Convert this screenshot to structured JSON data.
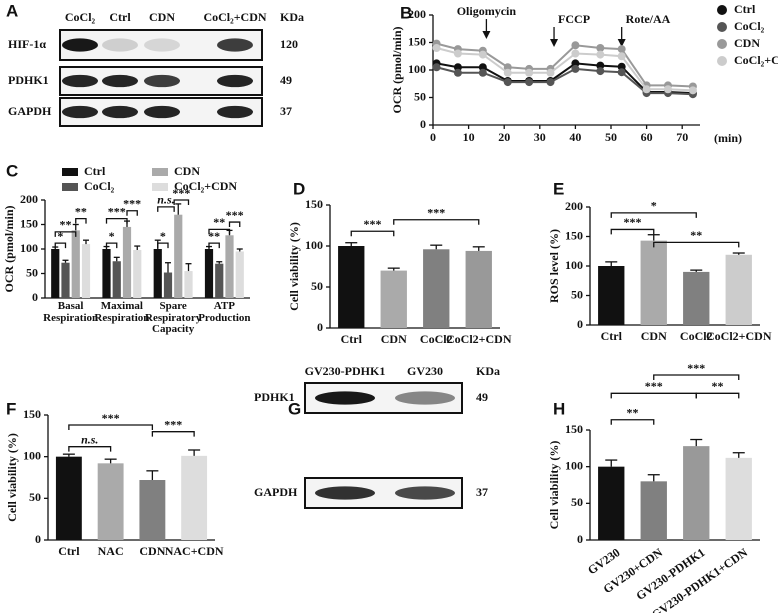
{
  "chart_data": [
    {
      "type": "blot",
      "panel": "A",
      "columns": [
        "CoCl₂",
        "Ctrl",
        "CDN",
        "CoCl₂+CDN"
      ],
      "unit": "KDa",
      "rows": [
        "HIF-1α",
        "PDHK1",
        "GAPDH"
      ],
      "sizes": [
        120,
        49,
        37
      ]
    },
    {
      "type": "line",
      "panel": "B",
      "ylabel": "OCR (pmol/min)",
      "xlabel": "(min)",
      "x": [
        1,
        7,
        14,
        21,
        27,
        33,
        40,
        47,
        53,
        60,
        66,
        73
      ],
      "series": [
        {
          "name": "Ctrl",
          "color": "#111111",
          "values": [
            112,
            105,
            105,
            80,
            80,
            80,
            112,
            108,
            106,
            60,
            60,
            58
          ]
        },
        {
          "name": "CoCl₂",
          "color": "#555555",
          "values": [
            105,
            95,
            95,
            78,
            78,
            78,
            102,
            98,
            96,
            58,
            58,
            56
          ]
        },
        {
          "name": "CDN",
          "color": "#999999",
          "values": [
            148,
            138,
            135,
            105,
            102,
            102,
            145,
            140,
            138,
            72,
            72,
            70
          ]
        },
        {
          "name": "CoCl₂+CDN",
          "color": "#cccccc",
          "values": [
            140,
            130,
            128,
            95,
            95,
            95,
            130,
            128,
            125,
            65,
            65,
            63
          ]
        }
      ],
      "xlim": [
        0,
        75
      ],
      "xticks": [
        0,
        10,
        20,
        30,
        40,
        50,
        60,
        70
      ],
      "ylim": [
        0,
        200
      ],
      "yticks": [
        0,
        50,
        100,
        150,
        200
      ],
      "annotations": [
        "Oligomycin",
        "FCCP",
        "Rote/AA"
      ]
    },
    {
      "type": "bar",
      "panel": "C",
      "ylabel": "OCR (pmol/min)",
      "categories": [
        "Basal Respiration",
        "Maximal Respiration",
        "Spare Respiratory Capacity",
        "ATP Production"
      ],
      "series": [
        {
          "name": "Ctrl",
          "color": "#111111",
          "values": [
            100,
            100,
            100,
            100
          ],
          "errors": [
            4,
            5,
            18,
            5
          ]
        },
        {
          "name": "CoCl₂",
          "color": "#555555",
          "values": [
            72,
            75,
            52,
            70
          ],
          "errors": [
            5,
            8,
            20,
            4
          ]
        },
        {
          "name": "CDN",
          "color": "#aaaaaa",
          "values": [
            138,
            145,
            170,
            128
          ],
          "errors": [
            12,
            12,
            22,
            10
          ]
        },
        {
          "name": "CoCl₂+CDN",
          "color": "#dddddd",
          "values": [
            110,
            98,
            55,
            95
          ],
          "errors": [
            8,
            8,
            15,
            5
          ]
        }
      ],
      "ylim": [
        0,
        200
      ],
      "yticks": [
        0,
        50,
        100,
        150,
        200
      ],
      "annotations": [
        "*",
        "**",
        "**",
        "*",
        "***",
        "***",
        "*",
        "n.s.",
        "***",
        "**",
        "**",
        "***"
      ]
    },
    {
      "type": "bar",
      "panel": "D",
      "ylabel": "Cell viability (%)",
      "categories": [
        "Ctrl",
        "CDN",
        "CoCl2",
        "CoCl2+CDN"
      ],
      "values": [
        100,
        70,
        96,
        94
      ],
      "errors": [
        4,
        3,
        5,
        5
      ],
      "colors": [
        "#111111",
        "#aaaaaa",
        "#808080",
        "#999999"
      ],
      "ylim": [
        0,
        150
      ],
      "yticks": [
        0,
        50,
        100,
        150
      ],
      "annotations": [
        "***",
        "***"
      ]
    },
    {
      "type": "bar",
      "panel": "E",
      "ylabel": "ROS  level (%)",
      "categories": [
        "Ctrl",
        "CDN",
        "CoCl2",
        "CoCl2+CDN"
      ],
      "values": [
        100,
        143,
        90,
        119
      ],
      "errors": [
        7,
        10,
        3,
        3
      ],
      "colors": [
        "#111111",
        "#aaaaaa",
        "#808080",
        "#cccccc"
      ],
      "ylim": [
        0,
        200
      ],
      "yticks": [
        0,
        50,
        100,
        150,
        200
      ],
      "annotations": [
        "*",
        "***",
        "**"
      ]
    },
    {
      "type": "bar",
      "panel": "F",
      "ylabel": "Cell viability (%)",
      "categories": [
        "Ctrl",
        "NAC",
        "CDN",
        "NAC+CDN"
      ],
      "values": [
        100,
        92,
        72,
        101
      ],
      "errors": [
        3,
        5,
        11,
        7
      ],
      "colors": [
        "#111111",
        "#aaaaaa",
        "#808080",
        "#dddddd"
      ],
      "ylim": [
        0,
        150
      ],
      "yticks": [
        0,
        50,
        100,
        150
      ],
      "annotations": [
        "***",
        "n.s.",
        "***"
      ]
    },
    {
      "type": "blot",
      "panel": "G",
      "columns": [
        "GV230-PDHK1",
        "GV230"
      ],
      "unit": "KDa",
      "rows": [
        "PDHK1",
        "GAPDH"
      ],
      "sizes": [
        49,
        37
      ]
    },
    {
      "type": "bar",
      "panel": "H",
      "ylabel": "Cell viability (%)",
      "categories": [
        "GV230",
        "GV230+CDN",
        "GV230-PDHK1",
        "GV230-PDHK1+CDN"
      ],
      "values": [
        100,
        80,
        128,
        112
      ],
      "errors": [
        9,
        9,
        9,
        7
      ],
      "colors": [
        "#111111",
        "#808080",
        "#999999",
        "#dddddd"
      ],
      "ylim": [
        0,
        150
      ],
      "yticks": [
        0,
        50,
        100,
        150
      ],
      "annotations": [
        "***",
        "***",
        "**",
        "**"
      ]
    }
  ]
}
